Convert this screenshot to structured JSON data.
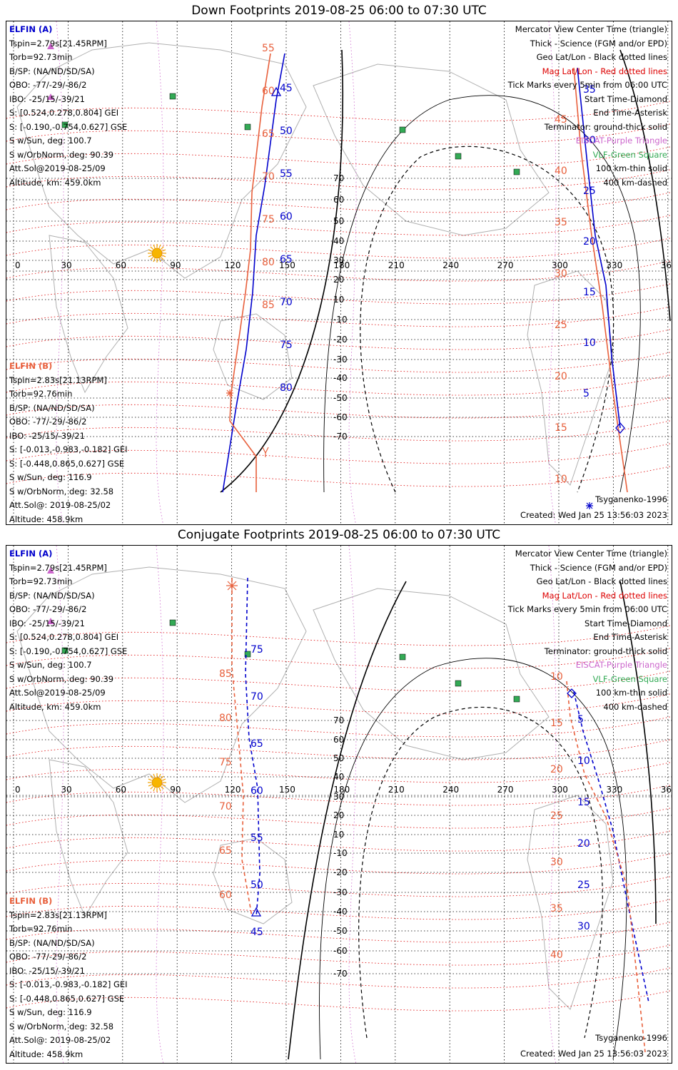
{
  "colors": {
    "elfin_a": "#0000cc",
    "elfin_b": "#e8603c",
    "purple": "#cc66cc",
    "green": "#33aa55",
    "mag": "#dd0000"
  },
  "panels": [
    {
      "title": "Down Footprints 2019-08-25 06:00 to 07:30 UTC",
      "mode": "down"
    },
    {
      "title": "Conjugate Footprints 2019-08-25 06:00 to 07:30 UTC",
      "mode": "conj"
    }
  ],
  "elfin_a": {
    "name": "ELFIN (A)",
    "lines": [
      "Tspin=2.79s[21.45RPM]",
      "Torb=92.73min",
      "B/SP: (NA/ND/SD/SA)",
      "OBO: -77/-29/-86/2",
      "IBO: -25/15/-39/21",
      "S: [0.524,0.278,0.804] GEI",
      "S: [-0.190,-0.754,0.627] GSE",
      "S w/Sun, deg: 100.7",
      "S w/OrbNorm, deg: 90.39",
      "Att.Sol@2019-08-25/09",
      "Altitude, km: 459.0km"
    ]
  },
  "elfin_b": {
    "name": "ELFIN (B)",
    "lines": [
      "Tspin=2.83s[21.13RPM]",
      "Torb=92.76min",
      "B/SP: (NA/ND/SD/SA)",
      "OBO: -77/-29/-86/2",
      "IBO: -25/15/-39/21",
      "S: [-0.013,-0.983,-0.182] GEI",
      "S: [-0.448,0.865,0.627] GSE",
      "S w/Sun, deg: 116.9",
      "S w/OrbNorm, deg: 32.58",
      "Att.Sol@: 2019-08-25/02",
      "Altitude: 458.9km"
    ]
  },
  "legend": [
    {
      "text": "Mercator View Center Time (triangle)",
      "color": "#000000"
    },
    {
      "text": "Thick - Science (FGM and/or EPD)",
      "color": "#000000"
    },
    {
      "text": "Geo Lat/Lon - Black dotted lines",
      "color": "#000000"
    },
    {
      "text": "Mag Lat/Lon - Red dotted lines",
      "color": "#dd0000"
    },
    {
      "text": "Tick Marks every 5min from 06:00 UTC",
      "color": "#000000"
    },
    {
      "text": "Start Time-Diamond",
      "color": "#000000"
    },
    {
      "text": "End Time-Asterisk",
      "color": "#000000"
    },
    {
      "text": "Terminator: ground-thick solid",
      "color": "#000000"
    },
    {
      "text": "EISCAT-Purple Triangle",
      "color": "#cc66cc"
    },
    {
      "text": "VLF-Green Square",
      "color": "#33aa55"
    },
    {
      "text": "100 km-thin solid",
      "color": "#000000"
    },
    {
      "text": "400 km-dashed",
      "color": "#000000"
    }
  ],
  "model": "Tsyganenko-1996",
  "created": "Created: Wed Jan 25 13:56:03 2023",
  "lon_labels": [
    "0",
    "30",
    "60",
    "90",
    "120",
    "150",
    "180",
    "210",
    "240",
    "270",
    "300",
    "330",
    "360"
  ],
  "lat_labels": [
    "70",
    "60",
    "50",
    "40",
    "30",
    "20",
    "10",
    "-10",
    "-20",
    "-30",
    "-40",
    "-50",
    "-60",
    "-70"
  ],
  "down": {
    "a_ticks": [
      "45",
      "50",
      "55",
      "60",
      "65",
      "70",
      "75",
      "80"
    ],
    "a_right_ticks": [
      "35",
      "30",
      "25",
      "20",
      "15",
      "10",
      "5"
    ],
    "b_ticks": [
      "55",
      "60",
      "65",
      "70",
      "75",
      "80",
      "85"
    ],
    "b_right_ticks": [
      "45",
      "40",
      "35",
      "30",
      "25",
      "20",
      "15",
      "10"
    ]
  },
  "conj": {
    "a_ticks": [
      "75",
      "70",
      "65",
      "60",
      "55",
      "50",
      "45"
    ],
    "a_right_ticks": [
      "5",
      "10",
      "15",
      "20",
      "25",
      "30"
    ],
    "b_ticks": [
      "85",
      "80",
      "75",
      "70",
      "65",
      "60"
    ],
    "b_right_ticks": [
      "10",
      "15",
      "20",
      "25",
      "30",
      "35",
      "40"
    ]
  }
}
